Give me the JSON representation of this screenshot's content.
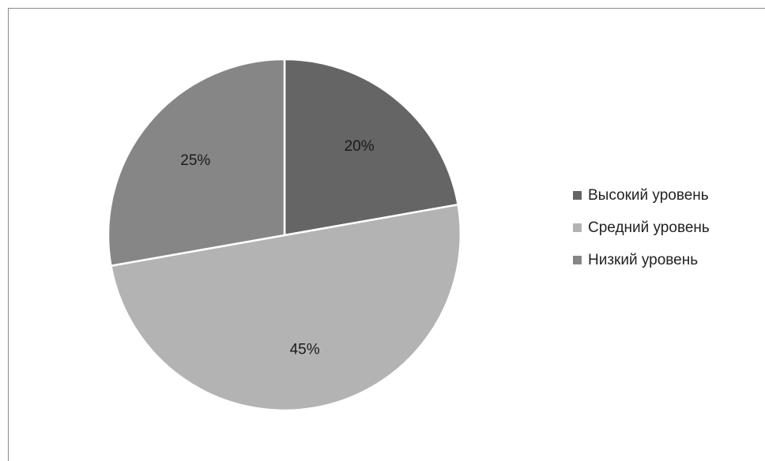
{
  "chart_data": {
    "type": "pie",
    "categories": [
      "Высокий уровень",
      "Средний уровень",
      "Низкий уровень"
    ],
    "values": [
      20,
      45,
      25
    ],
    "value_labels": [
      "20%",
      "45%",
      "25%"
    ],
    "colors": [
      "#656565",
      "#b3b3b3",
      "#868686"
    ],
    "start_angle_deg": 0,
    "direction": "clockwise",
    "legend_position": "right"
  }
}
